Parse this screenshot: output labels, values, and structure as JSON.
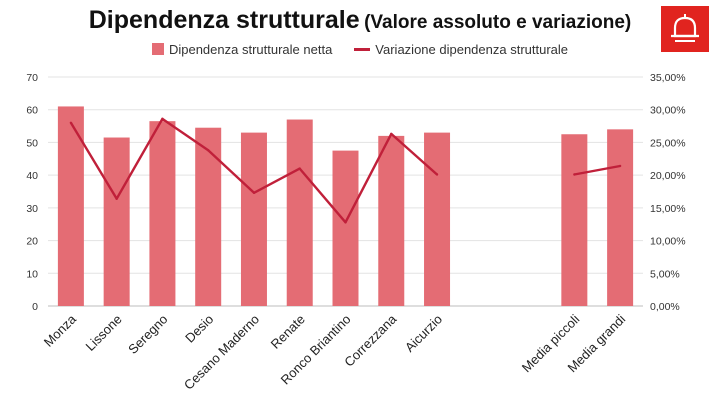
{
  "title": "Dipendenza strutturale",
  "subtitle": "(Valore assoluto e variazione)",
  "colors": {
    "bar": "#e46c74",
    "line": "#c0203a",
    "grid": "#e3e3e3",
    "logo": "#e1241f"
  },
  "logo_icon": "bell-icon",
  "chart_data": {
    "type": "bar+line",
    "categories": [
      "Monza",
      "Lissone",
      "Seregno",
      "Desio",
      "Cesano Maderno",
      "Renate",
      "Ronco Briantino",
      "Correzzana",
      "Aicurzio",
      "",
      "",
      "Media piccoli",
      "Media grandi"
    ],
    "series": [
      {
        "name": "Dipendenza strutturale netta",
        "type": "bar",
        "axis": "left",
        "values": [
          61,
          51.5,
          56.5,
          54.5,
          53,
          57,
          47.5,
          52,
          53,
          null,
          null,
          52.5,
          54
        ]
      },
      {
        "name": "Variazione dipendenza strutturale",
        "type": "line",
        "axis": "right",
        "values": [
          28.0,
          16.4,
          28.6,
          23.8,
          17.3,
          21.0,
          12.8,
          26.3,
          20.1,
          null,
          null,
          20.1,
          21.4
        ]
      }
    ],
    "left_axis": {
      "min": 0,
      "max": 70,
      "ticks": [
        "0",
        "10",
        "20",
        "30",
        "40",
        "50",
        "60",
        "70"
      ]
    },
    "right_axis": {
      "min": 0,
      "max": 35,
      "ticks": [
        "0,00%",
        "5,00%",
        "10,00%",
        "15,00%",
        "20,00%",
        "25,00%",
        "30,00%",
        "35,00%"
      ]
    },
    "legend_position": "top"
  }
}
